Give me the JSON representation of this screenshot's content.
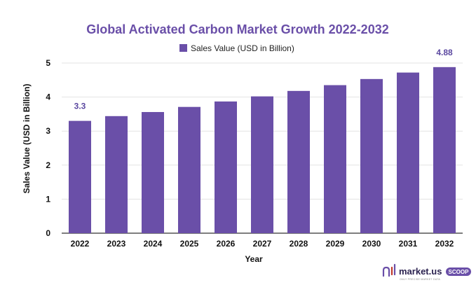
{
  "chart_data": {
    "type": "bar",
    "title": "Global Activated Carbon Market Growth 2022-2032",
    "xlabel": "Year",
    "ylabel": "Sales Value (USD in Billion)",
    "categories": [
      "2022",
      "2023",
      "2024",
      "2025",
      "2026",
      "2027",
      "2028",
      "2029",
      "2030",
      "2031",
      "2032"
    ],
    "series": [
      {
        "name": "Sales Value (USD in Billion)",
        "values": [
          3.3,
          3.44,
          3.56,
          3.71,
          3.87,
          4.02,
          4.18,
          4.35,
          4.53,
          4.72,
          4.88
        ],
        "color": "#6a4fa8"
      }
    ],
    "data_labels": [
      {
        "category": "2022",
        "text": "3.3"
      },
      {
        "category": "2032",
        "text": "4.88"
      }
    ],
    "ylim": [
      0,
      5
    ],
    "yticks": [
      "0",
      "1",
      "2",
      "3",
      "4",
      "5"
    ],
    "grid": true,
    "legend_position": "top-center"
  },
  "branding": {
    "name": "market.us",
    "badge": "SCOOP",
    "tagline": "ONLY PRECISE MARKET DATA",
    "brand_color": "#6a4fa8"
  }
}
